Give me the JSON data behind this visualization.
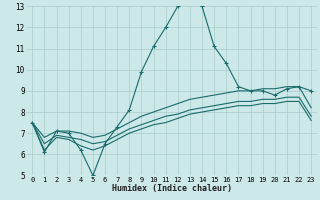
{
  "title": "",
  "xlabel": "Humidex (Indice chaleur)",
  "bg_color": "#cce8e8",
  "grid_color": "#aacccc",
  "line_color": "#1a6b6b",
  "xlim": [
    -0.5,
    23.5
  ],
  "ylim": [
    5,
    13
  ],
  "xtick_labels": [
    "0",
    "1",
    "2",
    "3",
    "4",
    "5",
    "6",
    "7",
    "8",
    "9",
    "10",
    "11",
    "12",
    "13",
    "14",
    "15",
    "16",
    "17",
    "18",
    "19",
    "20",
    "21",
    "22",
    "23"
  ],
  "xticks": [
    0,
    1,
    2,
    3,
    4,
    5,
    6,
    7,
    8,
    9,
    10,
    11,
    12,
    13,
    14,
    15,
    16,
    17,
    18,
    19,
    20,
    21,
    22,
    23
  ],
  "yticks": [
    5,
    6,
    7,
    8,
    9,
    10,
    11,
    12,
    13
  ],
  "series": [
    {
      "x": [
        0,
        1,
        2,
        3,
        4,
        5,
        6,
        7,
        8,
        9,
        10,
        11,
        12,
        13,
        14,
        15,
        16,
        17,
        18,
        19,
        20,
        21,
        22,
        23
      ],
      "y": [
        7.5,
        6.1,
        7.1,
        7.0,
        6.2,
        5.0,
        6.5,
        7.3,
        8.1,
        9.9,
        11.1,
        12.0,
        13.0,
        13.2,
        13.0,
        11.1,
        10.3,
        9.2,
        9.0,
        9.0,
        8.8,
        9.1,
        9.2,
        9.0
      ],
      "marker": "+"
    },
    {
      "x": [
        0,
        1,
        2,
        3,
        4,
        5,
        6,
        7,
        8,
        9,
        10,
        11,
        12,
        13,
        14,
        15,
        16,
        17,
        18,
        19,
        20,
        21,
        22,
        23
      ],
      "y": [
        7.5,
        6.8,
        7.1,
        7.1,
        7.0,
        6.8,
        6.9,
        7.2,
        7.5,
        7.8,
        8.0,
        8.2,
        8.4,
        8.6,
        8.7,
        8.8,
        8.9,
        9.0,
        9.0,
        9.1,
        9.1,
        9.2,
        9.2,
        8.2
      ],
      "marker": null
    },
    {
      "x": [
        0,
        1,
        2,
        3,
        4,
        5,
        6,
        7,
        8,
        9,
        10,
        11,
        12,
        13,
        14,
        15,
        16,
        17,
        18,
        19,
        20,
        21,
        22,
        23
      ],
      "y": [
        7.5,
        6.5,
        6.9,
        6.8,
        6.7,
        6.5,
        6.6,
        6.9,
        7.2,
        7.4,
        7.6,
        7.8,
        7.9,
        8.1,
        8.2,
        8.3,
        8.4,
        8.5,
        8.5,
        8.6,
        8.6,
        8.7,
        8.7,
        7.8
      ],
      "marker": null
    },
    {
      "x": [
        0,
        1,
        2,
        3,
        4,
        5,
        6,
        7,
        8,
        9,
        10,
        11,
        12,
        13,
        14,
        15,
        16,
        17,
        18,
        19,
        20,
        21,
        22,
        23
      ],
      "y": [
        7.5,
        6.2,
        6.8,
        6.7,
        6.4,
        6.2,
        6.4,
        6.7,
        7.0,
        7.2,
        7.4,
        7.5,
        7.7,
        7.9,
        8.0,
        8.1,
        8.2,
        8.3,
        8.3,
        8.4,
        8.4,
        8.5,
        8.5,
        7.6
      ],
      "marker": null
    }
  ]
}
